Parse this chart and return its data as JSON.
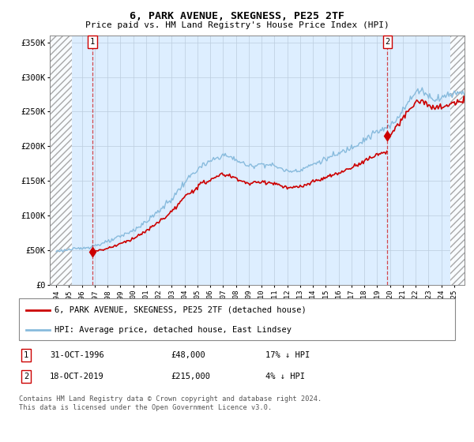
{
  "title": "6, PARK AVENUE, SKEGNESS, PE25 2TF",
  "subtitle": "Price paid vs. HM Land Registry's House Price Index (HPI)",
  "sale1_date": "31-OCT-1996",
  "sale1_price": "£48,000",
  "sale1_hpi": "17% ↓ HPI",
  "sale2_date": "18-OCT-2019",
  "sale2_price": "£215,000",
  "sale2_hpi": "4% ↓ HPI",
  "legend_line1": "6, PARK AVENUE, SKEGNESS, PE25 2TF (detached house)",
  "legend_line2": "HPI: Average price, detached house, East Lindsey",
  "footer": "Contains HM Land Registry data © Crown copyright and database right 2024.\nThis data is licensed under the Open Government Licence v3.0.",
  "hpi_color": "#88bbdd",
  "sale_color": "#cc0000",
  "plot_bg": "#ddeeff",
  "grid_color": "#bbccdd",
  "ylim": [
    0,
    360000
  ],
  "ytick_vals": [
    0,
    50000,
    100000,
    150000,
    200000,
    250000,
    300000,
    350000
  ],
  "ytick_labels": [
    "£0",
    "£50K",
    "£100K",
    "£150K",
    "£200K",
    "£250K",
    "£300K",
    "£350K"
  ],
  "xlim": [
    1993.5,
    2025.8
  ],
  "xticks": [
    1994,
    1995,
    1996,
    1997,
    1998,
    1999,
    2000,
    2001,
    2002,
    2003,
    2004,
    2005,
    2006,
    2007,
    2008,
    2009,
    2010,
    2011,
    2012,
    2013,
    2014,
    2015,
    2016,
    2017,
    2018,
    2019,
    2020,
    2021,
    2022,
    2023,
    2024,
    2025
  ],
  "sale1_year": 1996.833,
  "sale1_price_val": 48000,
  "sale2_year": 2019.792,
  "sale2_price_val": 215000,
  "hatch_left_end": 1995.2,
  "hatch_right_start": 2024.7
}
